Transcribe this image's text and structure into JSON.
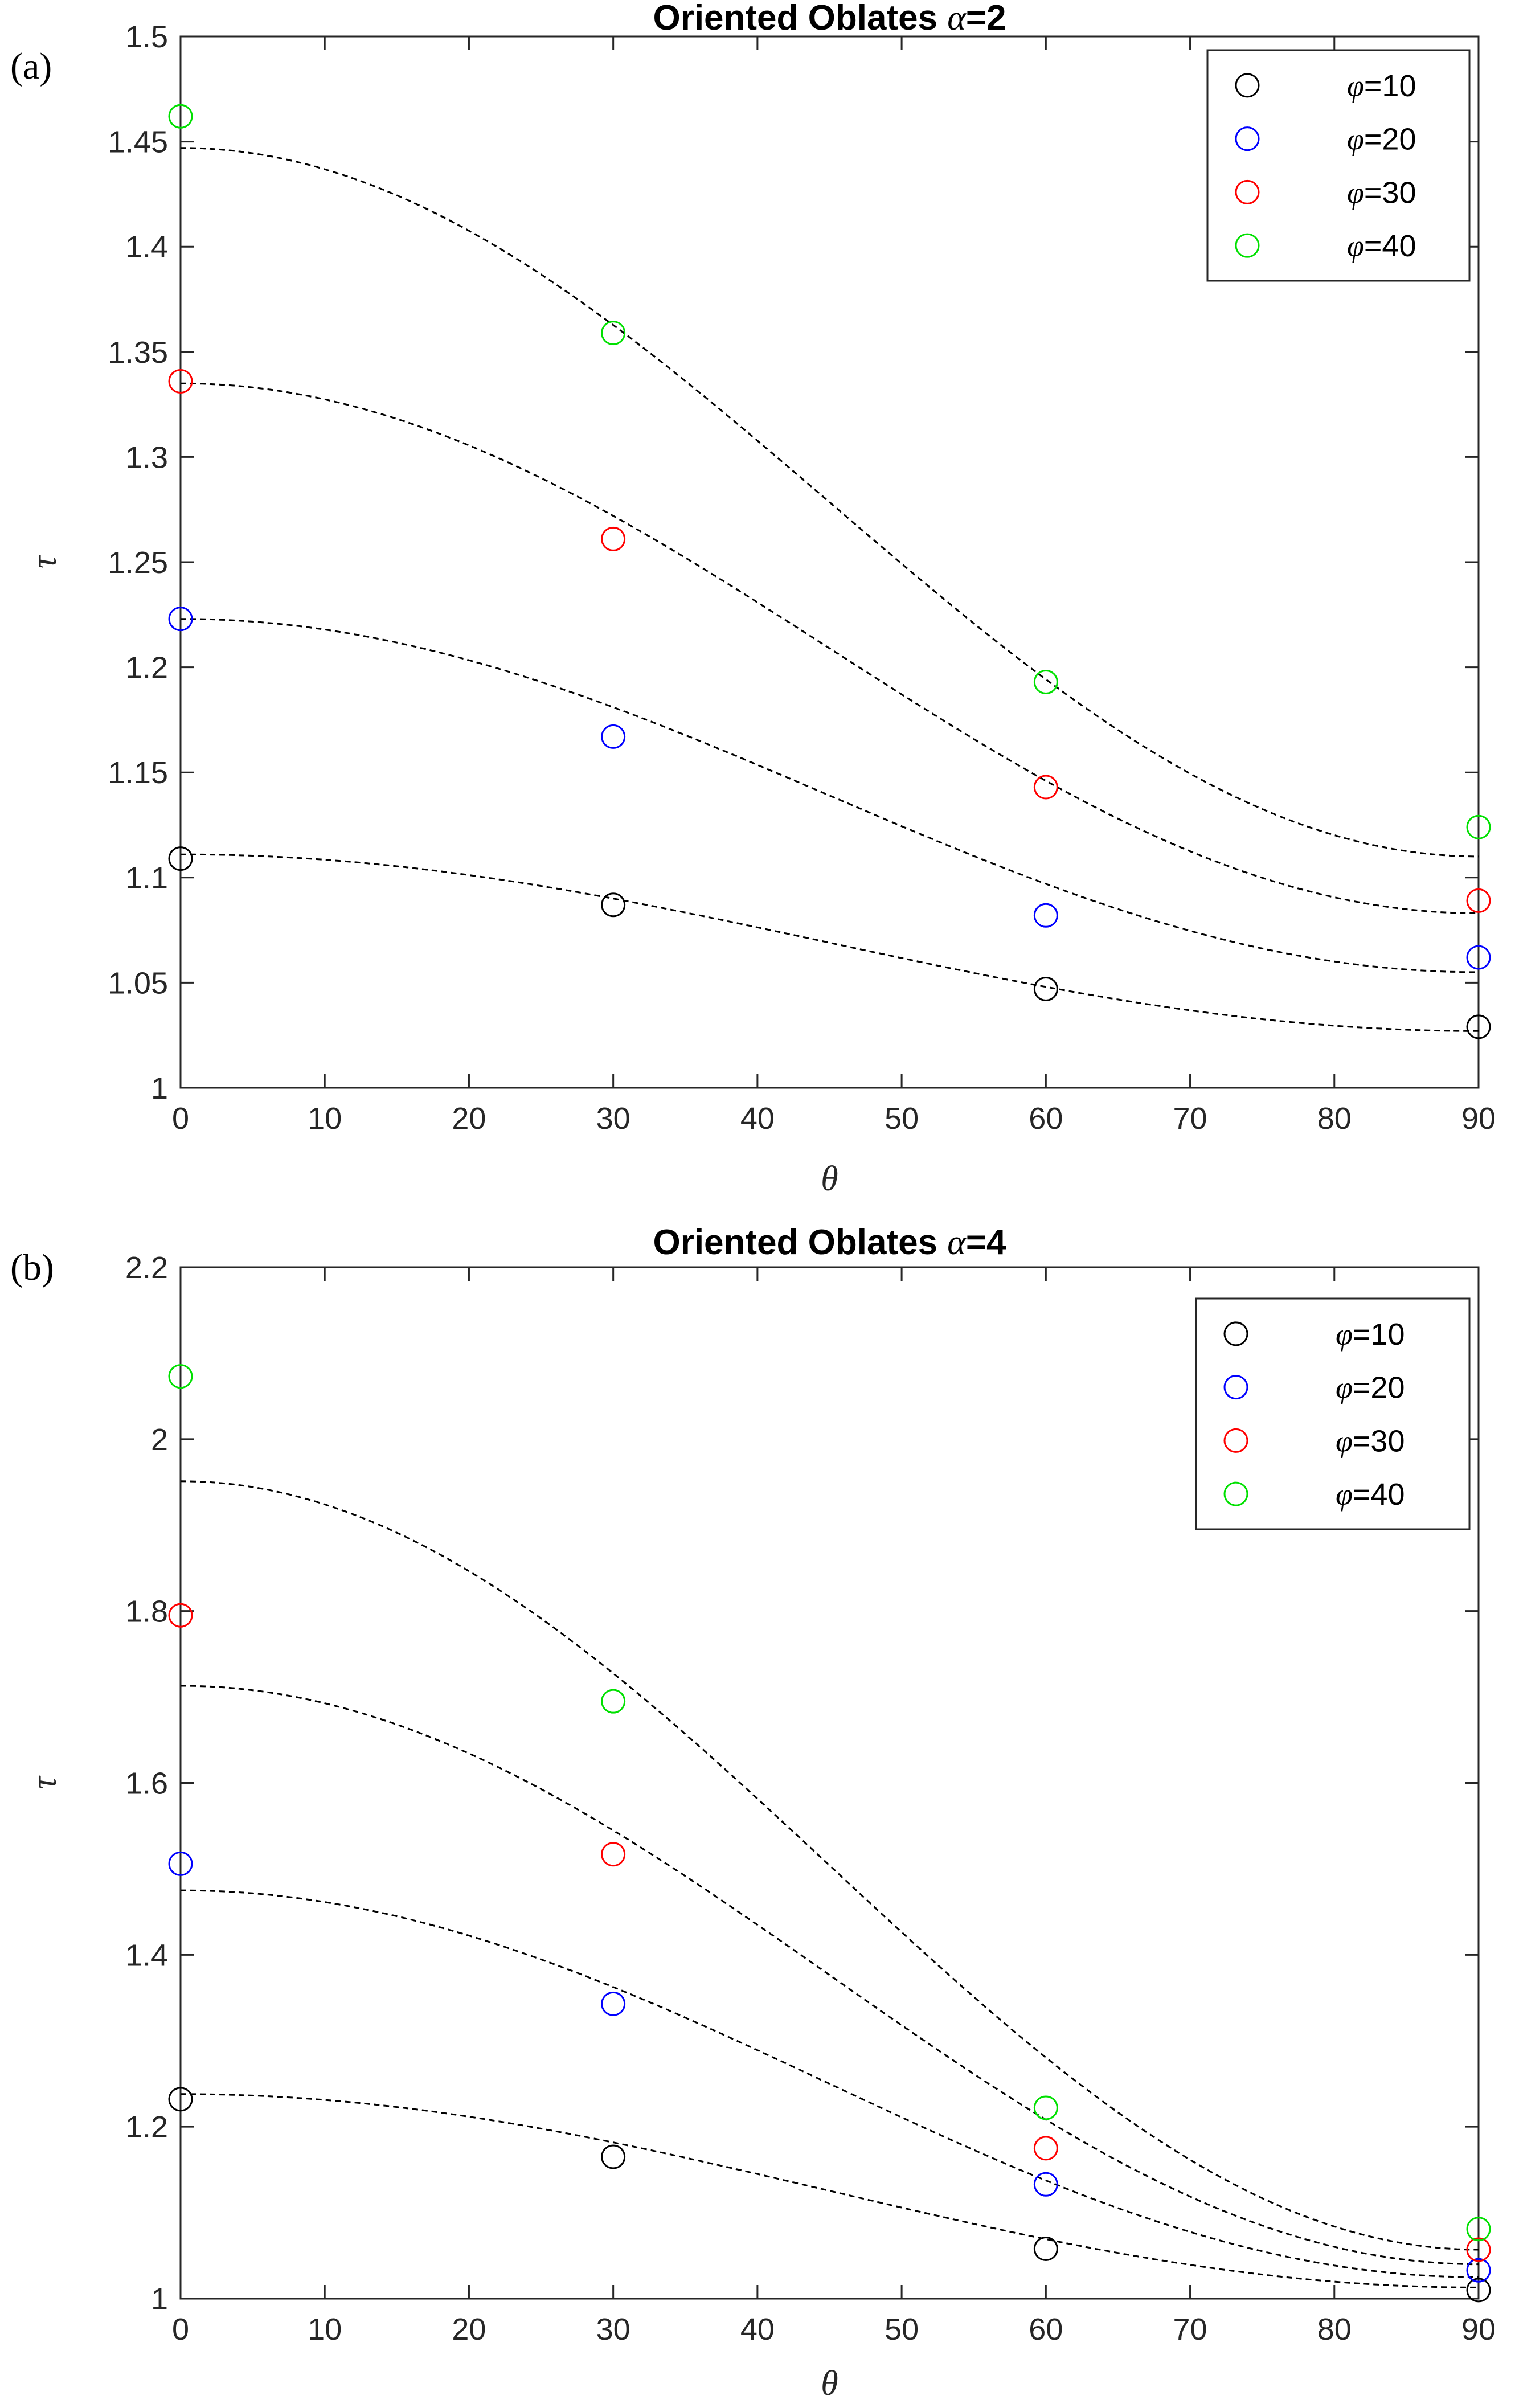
{
  "chart_data": [
    {
      "panel": "(a)",
      "type": "scatter",
      "title_prefix": "Oriented Oblates ",
      "title_symbol": "α",
      "title_suffix": "=2",
      "xlabel": "θ",
      "ylabel": "τ",
      "xlim": [
        0,
        90
      ],
      "ylim": [
        1,
        1.5
      ],
      "xticks": [
        0,
        10,
        20,
        30,
        40,
        50,
        60,
        70,
        80,
        90
      ],
      "yticks": [
        1,
        1.05,
        1.1,
        1.15,
        1.2,
        1.25,
        1.3,
        1.35,
        1.4,
        1.45,
        1.5
      ],
      "ytick_labels": [
        "1",
        "1.05",
        "1.1",
        "1.15",
        "1.2",
        "1.25",
        "1.3",
        "1.35",
        "1.4",
        "1.45",
        "1.5"
      ],
      "x": [
        0,
        30,
        60,
        90
      ],
      "legend_position": "top-right",
      "series": [
        {
          "symbol": "φ",
          "label": "=10",
          "color": "#000000",
          "values": [
            1.109,
            1.087,
            1.047,
            1.029
          ],
          "fit": [
            1.111,
            1.027
          ]
        },
        {
          "symbol": "φ",
          "label": "=20",
          "color": "#0000ff",
          "values": [
            1.223,
            1.167,
            1.082,
            1.062
          ],
          "fit": [
            1.223,
            1.055
          ]
        },
        {
          "symbol": "φ",
          "label": "=30",
          "color": "#ff0000",
          "values": [
            1.336,
            1.261,
            1.143,
            1.089
          ],
          "fit": [
            1.335,
            1.083
          ]
        },
        {
          "symbol": "φ",
          "label": "=40",
          "color": "#00e000",
          "values": [
            1.462,
            1.359,
            1.193,
            1.124
          ],
          "fit": [
            1.447,
            1.11
          ]
        }
      ]
    },
    {
      "panel": "(b)",
      "type": "scatter",
      "title_prefix": "Oriented Oblates ",
      "title_symbol": "α",
      "title_suffix": "=4",
      "xlabel": "θ",
      "ylabel": "τ",
      "xlim": [
        0,
        90
      ],
      "ylim": [
        1,
        2.2
      ],
      "xticks": [
        0,
        10,
        20,
        30,
        40,
        50,
        60,
        70,
        80,
        90
      ],
      "yticks": [
        1,
        1.2,
        1.4,
        1.6,
        1.8,
        2,
        2.2
      ],
      "ytick_labels": [
        "1",
        "1.2",
        "1.4",
        "1.6",
        "1.8",
        "2",
        "2.2"
      ],
      "x": [
        0,
        30,
        60,
        90
      ],
      "legend_position": "top-right",
      "series": [
        {
          "symbol": "φ",
          "label": "=10",
          "color": "#000000",
          "values": [
            1.232,
            1.165,
            1.058,
            1.01
          ],
          "fit": [
            1.238,
            1.013
          ]
        },
        {
          "symbol": "φ",
          "label": "=20",
          "color": "#0000ff",
          "values": [
            1.506,
            1.343,
            1.133,
            1.033
          ],
          "fit": [
            1.475,
            1.025
          ]
        },
        {
          "symbol": "φ",
          "label": "=30",
          "color": "#ff0000",
          "values": [
            1.795,
            1.517,
            1.175,
            1.057
          ],
          "fit": [
            1.713,
            1.04
          ]
        },
        {
          "symbol": "φ",
          "label": "=40",
          "color": "#00e000",
          "values": [
            2.073,
            1.695,
            1.222,
            1.081
          ],
          "fit": [
            1.951,
            1.057
          ]
        }
      ]
    }
  ]
}
